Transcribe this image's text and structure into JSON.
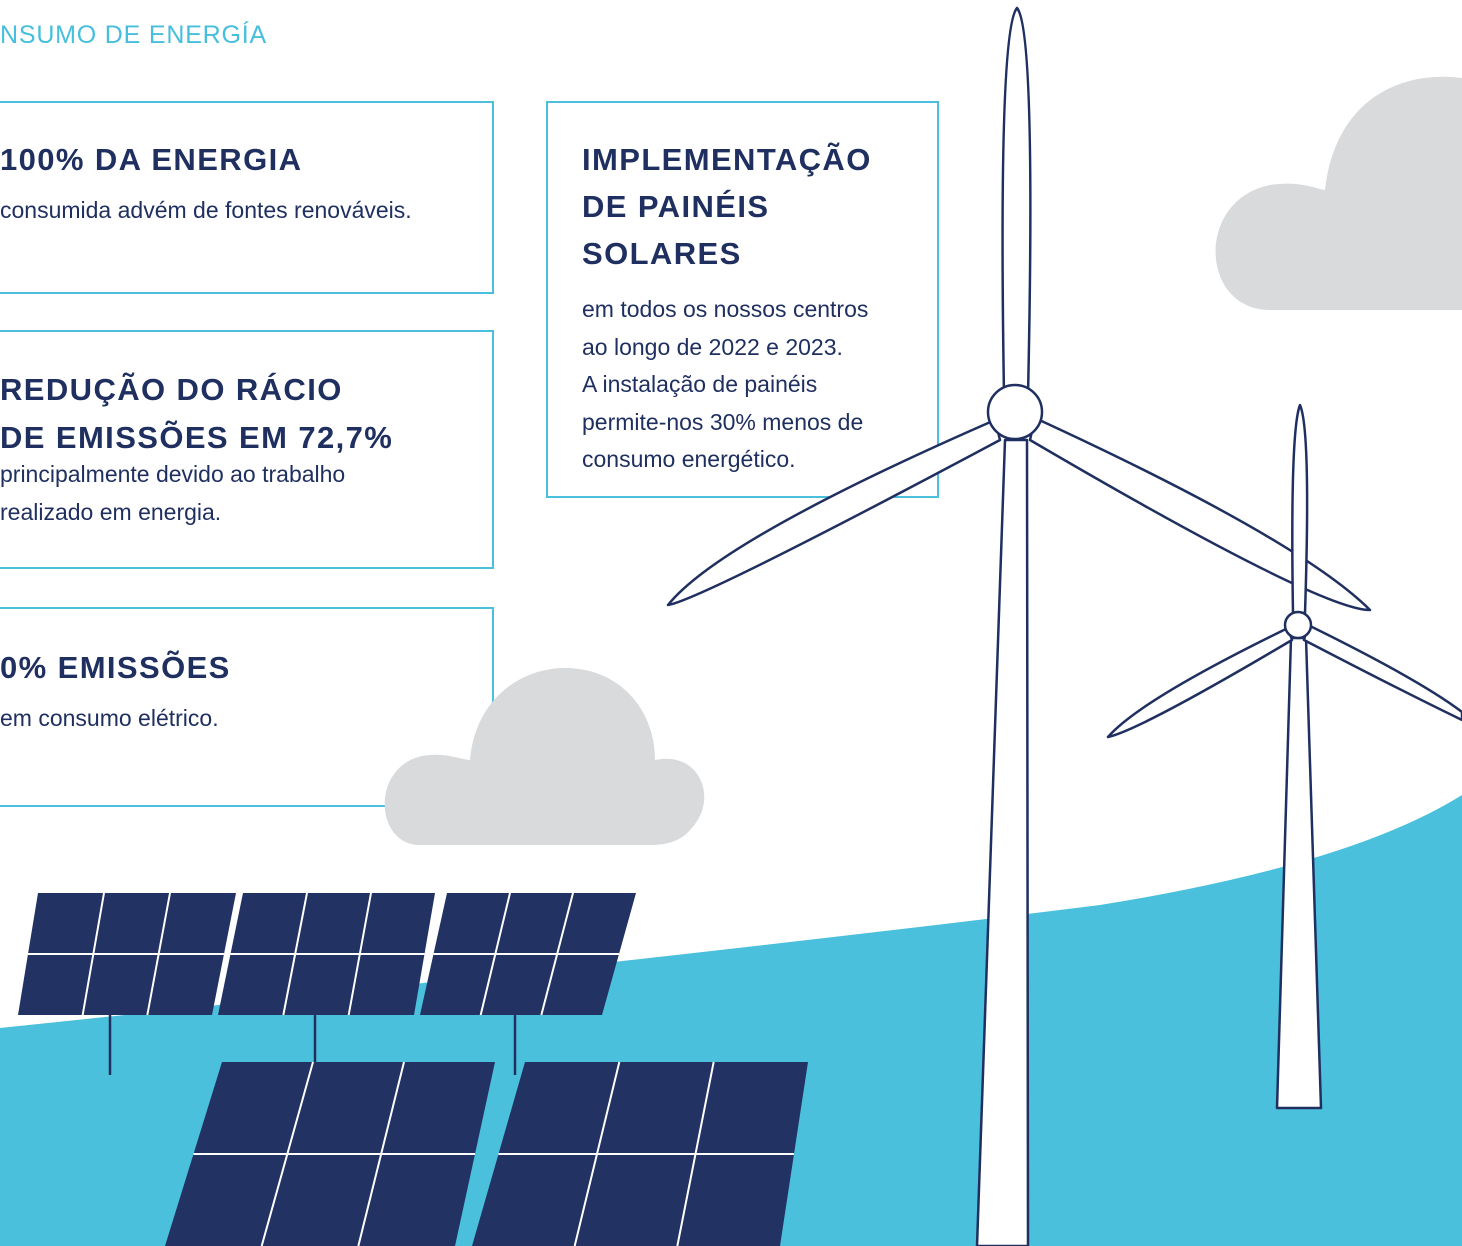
{
  "header": {
    "title": "NSUMO DE ENERGÍA"
  },
  "cards": [
    {
      "heading": [
        "100% DA ENERGIA"
      ],
      "body": [
        "consumida advém de fontes renováveis."
      ]
    },
    {
      "heading": [
        "REDUÇÃO DO RÁCIO",
        "DE EMISSÕES EM 72,7%"
      ],
      "body": [
        "principalmente devido ao trabalho",
        "realizado em energia."
      ]
    },
    {
      "heading": [
        "0% EMISSÕES"
      ],
      "body": [
        "em consumo elétrico."
      ]
    },
    {
      "heading": [
        "IMPLEMENTAÇÃO",
        "DE PAINÉIS",
        "SOLARES"
      ],
      "body": [
        "em todos os nossos centros",
        "ao longo de 2022 e 2023.",
        "A instalação de painéis",
        "permite-nos 30% menos de",
        "consumo energético."
      ]
    }
  ]
}
